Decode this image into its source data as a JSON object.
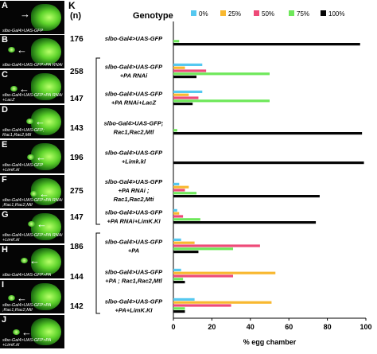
{
  "left_panels": [
    {
      "letter": "A",
      "genotype_label": "slbo-Gal4>UAS-GFP"
    },
    {
      "letter": "B",
      "genotype_label": "slbo-Gal4>UAS-GFP>PA RNAi"
    },
    {
      "letter": "C",
      "genotype_label": "slbo-Gal4>UAS-GFP>PA RNAi\n+LacZ"
    },
    {
      "letter": "D",
      "genotype_label": "slbo-Gal4>UAS-GFP;\nRac1,Rac2,Mtl"
    },
    {
      "letter": "E",
      "genotype_label": "slbo-Gal4>UAS-GFP\n+LimK.kl"
    },
    {
      "letter": "F",
      "genotype_label": "slbo-Gal4>UAS-GFP>PA RNAi\n;Rac1,Rac2,Mtl"
    },
    {
      "letter": "G",
      "genotype_label": "slbo-Gal4>UAS-GFP>PA RNAi\n+LimK.kl"
    },
    {
      "letter": "H",
      "genotype_label": "slbo-Gal4>UAS-GFP>PA"
    },
    {
      "letter": "I",
      "genotype_label": "slbo-Gal4>UAS-GFP>PA\n;Rac1,Rac2,Mtl"
    },
    {
      "letter": "J",
      "genotype_label": "slbo-Gal4>UAS-GFP>PA\n+LimK.kl"
    }
  ],
  "panel_k_letter": "K",
  "chart_data": {
    "type": "bar",
    "orientation": "horizontal",
    "n_header": "(n)",
    "genotype_header": "Genotype",
    "categories": [
      {
        "n": "176",
        "lines": [
          "slbo-Gal4>UAS-GFP"
        ]
      },
      {
        "n": "258",
        "lines": [
          "slbo-Gal4>UAS-GFP",
          "+PA RNAi"
        ]
      },
      {
        "n": "147",
        "lines": [
          "slbo-Gal4>UAS-GFP",
          "+PA RNAi+LacZ"
        ]
      },
      {
        "n": "143",
        "lines": [
          "slbo-Gal4>UAS-GFP;",
          "Rac1,Rac2,Mtl"
        ]
      },
      {
        "n": "196",
        "lines": [
          "slbo-Gal4>UAS-GFP",
          "+Limk.kl"
        ]
      },
      {
        "n": "275",
        "lines": [
          "slbo-Gal4>UAS-GFP",
          "+PA RNAi ;",
          "Rac1,Rac2,Mti"
        ]
      },
      {
        "n": "147",
        "lines": [
          "slbo-Gal4>UAS-GFP",
          "+PA RNAi+LimK.KI"
        ]
      },
      {
        "n": "186",
        "lines": [
          "slbo-Gal4>UAS-GFP",
          "+PA"
        ]
      },
      {
        "n": "144",
        "lines": [
          "slbo-Gal4>UAS-GFP",
          "+PA ; Rac1,Rac2,Mtl"
        ]
      },
      {
        "n": "142",
        "lines": [
          "slbo-Gal4>UAS-GFP",
          "+PA+LimK.KI"
        ]
      }
    ],
    "series": [
      {
        "name": "0%",
        "color": "#55c8f0",
        "values": [
          0,
          15,
          15,
          0,
          0,
          3,
          2,
          4,
          4,
          11
        ]
      },
      {
        "name": "25%",
        "color": "#f8b830",
        "values": [
          0,
          6,
          8,
          0,
          0,
          8,
          3,
          11,
          53,
          51
        ]
      },
      {
        "name": "50%",
        "color": "#ee4a78",
        "values": [
          0,
          17,
          13,
          0,
          0,
          6,
          5,
          45,
          31,
          30
        ]
      },
      {
        "name": "75%",
        "color": "#6ee85a",
        "values": [
          3,
          50,
          50,
          2,
          0,
          12,
          14,
          31,
          5,
          6
        ]
      },
      {
        "name": "100%",
        "color": "#050505",
        "values": [
          97,
          12,
          10,
          98,
          99,
          76,
          74,
          13,
          6,
          6
        ]
      }
    ],
    "brackets": [
      [
        1,
        6
      ],
      [
        7,
        9
      ]
    ],
    "xlim": [
      0,
      100
    ],
    "xticks": [
      "0",
      "20",
      "40",
      "60",
      "80",
      "100"
    ],
    "xlabel": "% egg chamber"
  }
}
